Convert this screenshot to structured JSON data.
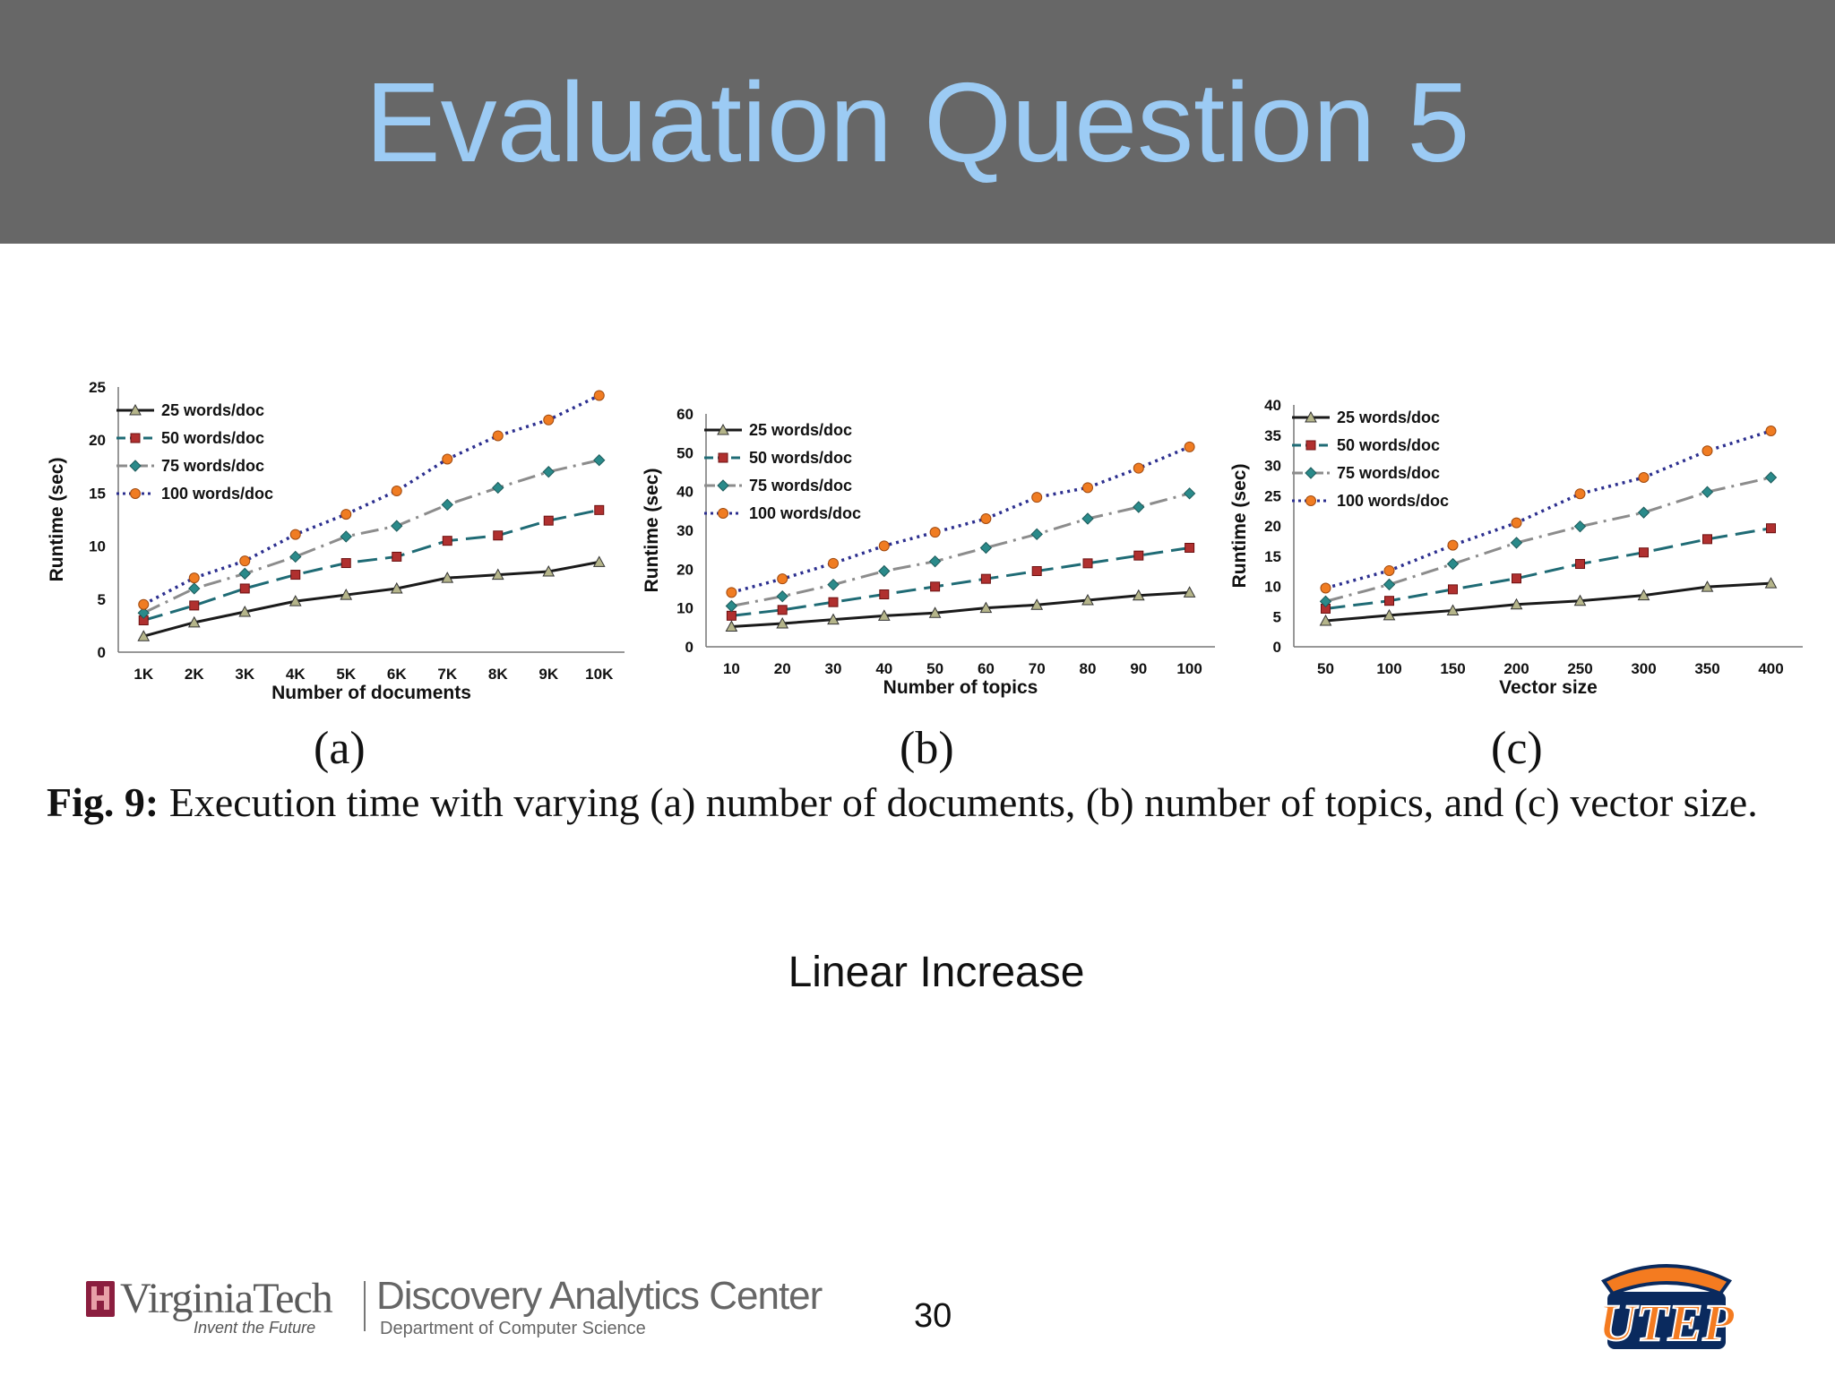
{
  "slide": {
    "title": "Evaluation Question 5",
    "subtitle": "Linear Increase",
    "page_number": "30",
    "header_bg": "#676767",
    "title_color": "#9ccbf4"
  },
  "figure": {
    "caption_label": "Fig. 9:",
    "caption_text": "Execution time with varying (a) number of documents, (b) number of topics, and (c) vector size."
  },
  "logos": {
    "vt_wordmark": "VirginiaTech",
    "vt_tagline": "Invent the Future",
    "dac_name": "Discovery Analytics Center",
    "dac_dept": "Department of Computer Science",
    "utep": "UTEP"
  },
  "series_styles": [
    {
      "name": "25 words/doc",
      "color": "#1a1a1a",
      "marker": "triangle",
      "marker_fill": "#b5b58a",
      "dash": "none"
    },
    {
      "name": "50 words/doc",
      "color": "#1f6b75",
      "marker": "square",
      "marker_fill": "#b0302f",
      "dash": "long-dash"
    },
    {
      "name": "75 words/doc",
      "color": "#8c8c8c",
      "marker": "diamond",
      "marker_fill": "#2a8a8a",
      "dash": "dash-dot"
    },
    {
      "name": "100 words/doc",
      "color": "#2c2f8f",
      "marker": "circle",
      "marker_fill": "#f07c22",
      "dash": "dotted"
    }
  ],
  "chart_data": [
    {
      "type": "line",
      "panel_label": "(a)",
      "xlabel": "Number of documents",
      "ylabel": "Runtime (sec)",
      "categories": [
        "1K",
        "2K",
        "3K",
        "4K",
        "5K",
        "6K",
        "7K",
        "8K",
        "9K",
        "10K"
      ],
      "ylim": [
        0,
        25
      ],
      "yticks": [
        0,
        5,
        10,
        15,
        20,
        25
      ],
      "legend": "top-left",
      "grid": false,
      "series": [
        {
          "name": "25 words/doc",
          "values": [
            1.5,
            2.8,
            3.8,
            4.8,
            5.4,
            6.0,
            7.0,
            7.3,
            7.6,
            8.5
          ]
        },
        {
          "name": "50 words/doc",
          "values": [
            3.0,
            4.4,
            6.0,
            7.3,
            8.4,
            9.0,
            10.5,
            11.0,
            12.4,
            13.4
          ]
        },
        {
          "name": "75 words/doc",
          "values": [
            3.7,
            6.0,
            7.4,
            9.0,
            10.9,
            11.9,
            13.9,
            15.5,
            17.0,
            18.1
          ]
        },
        {
          "name": "100 words/doc",
          "values": [
            4.5,
            7.0,
            8.6,
            11.1,
            13.0,
            15.2,
            18.2,
            20.4,
            21.9,
            24.2
          ]
        }
      ]
    },
    {
      "type": "line",
      "panel_label": "(b)",
      "xlabel": "Number of topics",
      "ylabel": "Runtime (sec)",
      "categories": [
        "10",
        "20",
        "30",
        "40",
        "50",
        "60",
        "70",
        "80",
        "90",
        "100"
      ],
      "ylim": [
        0,
        60
      ],
      "yticks": [
        0,
        10,
        20,
        30,
        40,
        50,
        60
      ],
      "legend": "top-left",
      "grid": false,
      "series": [
        {
          "name": "25 words/doc",
          "values": [
            5.2,
            6.0,
            7.0,
            8.0,
            8.7,
            10.0,
            10.8,
            12.0,
            13.2,
            14.0
          ]
        },
        {
          "name": "50 words/doc",
          "values": [
            8.0,
            9.5,
            11.5,
            13.5,
            15.5,
            17.5,
            19.5,
            21.5,
            23.5,
            25.5
          ]
        },
        {
          "name": "75 words/doc",
          "values": [
            10.5,
            13.0,
            16.0,
            19.5,
            22.0,
            25.5,
            29.0,
            33.0,
            36.0,
            39.5
          ]
        },
        {
          "name": "100 words/doc",
          "values": [
            14.0,
            17.5,
            21.5,
            26.0,
            29.5,
            33.0,
            38.5,
            41.0,
            46.0,
            51.5
          ]
        }
      ]
    },
    {
      "type": "line",
      "panel_label": "(c)",
      "xlabel": "Vector size",
      "ylabel": "Runtime (sec)",
      "categories": [
        "50",
        "100",
        "150",
        "200",
        "250",
        "300",
        "350",
        "400"
      ],
      "ylim": [
        0,
        40
      ],
      "yticks": [
        0,
        5,
        10,
        15,
        20,
        25,
        30,
        35,
        40
      ],
      "legend": "top-left",
      "grid": false,
      "series": [
        {
          "name": "25 words/doc",
          "values": [
            4.3,
            5.2,
            6.0,
            7.0,
            7.6,
            8.5,
            9.9,
            10.5
          ]
        },
        {
          "name": "50 words/doc",
          "values": [
            6.3,
            7.6,
            9.5,
            11.3,
            13.7,
            15.6,
            17.8,
            19.6
          ]
        },
        {
          "name": "75 words/doc",
          "values": [
            7.5,
            10.3,
            13.7,
            17.2,
            19.9,
            22.2,
            25.6,
            28.0
          ]
        },
        {
          "name": "100 words/doc",
          "values": [
            9.7,
            12.6,
            16.8,
            20.5,
            25.3,
            28.0,
            32.4,
            35.7
          ]
        }
      ]
    }
  ]
}
